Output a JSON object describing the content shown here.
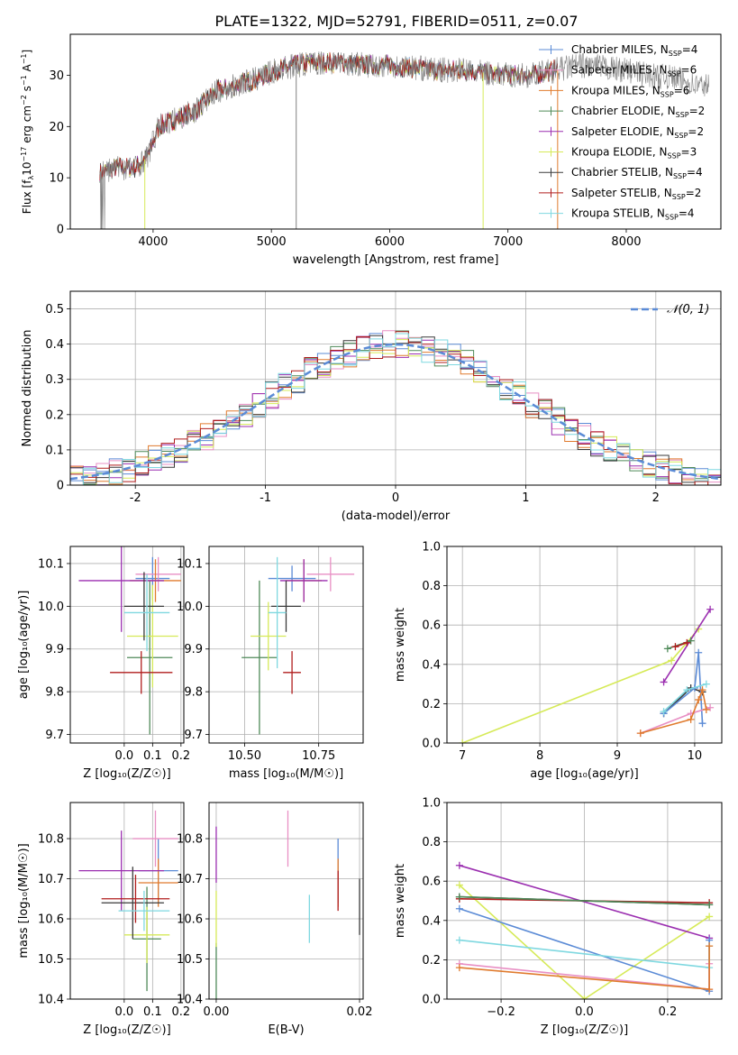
{
  "figure_title": "PLATE=1322, MJD=52791, FIBERID=0511, z=0.07",
  "colors": {
    "chabrier_miles": "#5b8bd6",
    "salpeter_miles": "#e88fc4",
    "kroupa_miles": "#e07b2e",
    "chabrier_elodie": "#4f8a59",
    "salpeter_elodie": "#9b2fb0",
    "kroupa_elodie": "#d6ea58",
    "chabrier_stelib": "#3a3a3a",
    "salpeter_stelib": "#b01d1d",
    "kroupa_stelib": "#7fd8e0",
    "data": "#808080",
    "gaussian": "#5b8bd6"
  },
  "chart_data": [
    {
      "id": "spectrum",
      "type": "line",
      "xlabel": "wavelength [Angstrom, rest frame]",
      "ylabel": "Flux [f_λ10^-17 erg cm^-2 s^-1 A^-1]",
      "xlim": [
        3300,
        8800
      ],
      "ylim": [
        0,
        38
      ],
      "xticks": [
        4000,
        5000,
        6000,
        7000,
        8000
      ],
      "yticks": [
        0,
        10,
        20,
        30
      ],
      "grid": false,
      "legend_position": "top-right",
      "legend": [
        {
          "name": "Chabrier MILES",
          "nssp": "4",
          "color_key": "chabrier_miles"
        },
        {
          "name": "Salpeter MILES",
          "nssp": "6",
          "color_key": "salpeter_miles"
        },
        {
          "name": "Kroupa MILES",
          "nssp": "6",
          "color_key": "kroupa_miles"
        },
        {
          "name": "Chabrier ELODIE",
          "nssp": "2",
          "color_key": "chabrier_elodie"
        },
        {
          "name": "Salpeter ELODIE",
          "nssp": "2",
          "color_key": "salpeter_elodie"
        },
        {
          "name": "Kroupa ELODIE",
          "nssp": "3",
          "color_key": "kroupa_elodie"
        },
        {
          "name": "Chabrier STELIB",
          "nssp": "4",
          "color_key": "chabrier_stelib"
        },
        {
          "name": "Salpeter STELIB",
          "nssp": "2",
          "color_key": "salpeter_stelib"
        },
        {
          "name": "Kroupa STELIB",
          "nssp": "4",
          "color_key": "kroupa_stelib"
        }
      ],
      "continuum": [
        [
          3550,
          11
        ],
        [
          3700,
          12
        ],
        [
          3850,
          12
        ],
        [
          3950,
          14
        ],
        [
          4050,
          20
        ],
        [
          4150,
          21
        ],
        [
          4250,
          22
        ],
        [
          4350,
          23
        ],
        [
          4450,
          25
        ],
        [
          4550,
          27
        ],
        [
          4650,
          27.5
        ],
        [
          4750,
          28.5
        ],
        [
          4850,
          29
        ],
        [
          4950,
          30
        ],
        [
          5050,
          31
        ],
        [
          5200,
          32
        ],
        [
          5400,
          32.5
        ],
        [
          5600,
          32.5
        ],
        [
          5800,
          32
        ],
        [
          6000,
          32
        ],
        [
          6200,
          31.5
        ],
        [
          6400,
          31
        ],
        [
          6600,
          31
        ],
        [
          6800,
          30.5
        ],
        [
          7000,
          30
        ],
        [
          7200,
          30
        ],
        [
          7400,
          31
        ],
        [
          7600,
          32
        ],
        [
          7800,
          31.5
        ],
        [
          8000,
          31
        ],
        [
          8200,
          30
        ],
        [
          8400,
          29.5
        ],
        [
          8600,
          28
        ]
      ]
    },
    {
      "id": "residuals",
      "type": "bar",
      "xlabel": "(data-model)/error",
      "ylabel": "Normed distribution",
      "xlim": [
        -2.5,
        2.5
      ],
      "ylim": [
        0,
        0.55
      ],
      "xticks": [
        -2,
        -1,
        0,
        1,
        2
      ],
      "yticks": [
        0.0,
        0.1,
        0.2,
        0.3,
        0.4,
        0.5
      ],
      "grid": true,
      "legend_position": "top-right",
      "gaussian_label": "𝒩(0, 1)",
      "bin_width": 0.1
    },
    {
      "id": "age_vs_Z",
      "type": "scatter",
      "xlabel": "Z [log₁₀(Z/Z☉)]",
      "ylabel": "age  [log₁₀(age/yr)]",
      "xlim": [
        -0.19,
        0.21
      ],
      "ylim": [
        9.68,
        10.14
      ],
      "xticks": [
        0.0,
        0.1,
        0.2
      ],
      "xticklabels": [
        "0.0",
        "0.1",
        "0.2"
      ],
      "yticks": [
        9.7,
        9.8,
        9.9,
        10.0,
        10.1
      ],
      "yticklabels": [
        "9.7",
        "9.8",
        "9.9",
        "10.0",
        "10.1"
      ],
      "grid": true,
      "points": [
        {
          "c": "chabrier_miles",
          "x": 0.1,
          "xe": 0.06,
          "y": 10.065,
          "ye": 0.05
        },
        {
          "c": "salpeter_miles",
          "x": 0.12,
          "xe": 0.08,
          "y": 10.075,
          "ye": 0.04
        },
        {
          "c": "kroupa_miles",
          "x": 0.11,
          "xe": 0.09,
          "y": 10.06,
          "ye": 0.05
        },
        {
          "c": "chabrier_elodie",
          "x": 0.09,
          "xe": 0.08,
          "y": 9.88,
          "ye": 0.18
        },
        {
          "c": "salpeter_elodie",
          "x": -0.01,
          "xe": 0.15,
          "y": 10.06,
          "ye": 0.12
        },
        {
          "c": "kroupa_elodie",
          "x": 0.1,
          "xe": 0.09,
          "y": 9.93,
          "ye": 0.12
        },
        {
          "c": "chabrier_stelib",
          "x": 0.07,
          "xe": 0.07,
          "y": 10.0,
          "ye": 0.08
        },
        {
          "c": "salpeter_stelib",
          "x": 0.06,
          "xe": 0.11,
          "y": 9.845,
          "ye": 0.05
        },
        {
          "c": "kroupa_stelib",
          "x": 0.08,
          "xe": 0.08,
          "y": 9.985,
          "ye": 0.09
        }
      ]
    },
    {
      "id": "age_vs_mass",
      "type": "scatter",
      "xlabel": "mass [log₁₀(M/M☉)]",
      "ylabel": "",
      "xlim": [
        10.38,
        10.9
      ],
      "ylim": [
        9.68,
        10.14
      ],
      "xticks": [
        10.5,
        10.75
      ],
      "xticklabels": [
        "10.50",
        "10.75"
      ],
      "yticks": [
        9.7,
        9.8,
        9.9,
        10.0,
        10.1
      ],
      "yticklabels": [
        "9.7",
        "9.8",
        "9.9",
        "10.0",
        "10.1"
      ],
      "grid": true,
      "points": [
        {
          "c": "chabrier_miles",
          "x": 10.66,
          "xe": 0.08,
          "y": 10.065,
          "ye": 0.03
        },
        {
          "c": "salpeter_miles",
          "x": 10.79,
          "xe": 0.08,
          "y": 10.075,
          "ye": 0.04
        },
        {
          "c": "kroupa_miles",
          "x": 10.7,
          "xe": 0.06,
          "y": 10.06,
          "ye": 0.05
        },
        {
          "c": "chabrier_elodie",
          "x": 10.55,
          "xe": 0.06,
          "y": 9.88,
          "ye": 0.18
        },
        {
          "c": "salpeter_elodie",
          "x": 10.7,
          "xe": 0.08,
          "y": 10.06,
          "ye": 0.05
        },
        {
          "c": "kroupa_elodie",
          "x": 10.58,
          "xe": 0.06,
          "y": 9.93,
          "ye": 0.08
        },
        {
          "c": "chabrier_stelib",
          "x": 10.64,
          "xe": 0.05,
          "y": 10.0,
          "ye": 0.06
        },
        {
          "c": "salpeter_stelib",
          "x": 10.66,
          "xe": 0.03,
          "y": 9.845,
          "ye": 0.05
        },
        {
          "c": "kroupa_stelib",
          "x": 10.61,
          "xe": 0.03,
          "y": 9.985,
          "ye": 0.13
        }
      ]
    },
    {
      "id": "weight_vs_age",
      "type": "line",
      "xlabel": "age  [log₁₀(age/yr)]",
      "ylabel": "mass weight",
      "xlim": [
        6.8,
        10.35
      ],
      "ylim": [
        0,
        1
      ],
      "xticks": [
        7,
        8,
        9,
        10
      ],
      "xticklabels": [
        "7",
        "8",
        "9",
        "10"
      ],
      "yticks": [
        0,
        0.2,
        0.4,
        0.6,
        0.8,
        1.0
      ],
      "yticklabels": [
        "0.0",
        "0.2",
        "0.4",
        "0.6",
        "0.8",
        "1.0"
      ],
      "grid": true,
      "series": [
        {
          "c": "kroupa_elodie",
          "pts": [
            [
              7.0,
              0.0
            ],
            [
              9.7,
              0.42
            ],
            [
              10.05,
              0.58
            ]
          ]
        },
        {
          "c": "salpeter_elodie",
          "pts": [
            [
              9.6,
              0.31
            ],
            [
              10.2,
              0.68
            ]
          ]
        },
        {
          "c": "chabrier_elodie",
          "pts": [
            [
              9.65,
              0.48
            ],
            [
              9.95,
              0.52
            ]
          ]
        },
        {
          "c": "salpeter_stelib",
          "pts": [
            [
              9.75,
              0.49
            ],
            [
              9.9,
              0.51
            ]
          ]
        },
        {
          "c": "chabrier_stelib",
          "pts": [
            [
              9.6,
              0.15
            ],
            [
              9.95,
              0.28
            ],
            [
              10.1,
              0.26
            ]
          ]
        },
        {
          "c": "chabrier_miles",
          "pts": [
            [
              9.6,
              0.15
            ],
            [
              10.0,
              0.28
            ],
            [
              10.05,
              0.46
            ],
            [
              10.1,
              0.1
            ]
          ]
        },
        {
          "c": "kroupa_stelib",
          "pts": [
            [
              9.6,
              0.16
            ],
            [
              9.9,
              0.27
            ],
            [
              10.15,
              0.3
            ]
          ]
        },
        {
          "c": "salpeter_miles",
          "pts": [
            [
              9.3,
              0.05
            ],
            [
              9.95,
              0.15
            ],
            [
              10.2,
              0.18
            ]
          ]
        },
        {
          "c": "kroupa_miles",
          "pts": [
            [
              9.3,
              0.05
            ],
            [
              9.95,
              0.12
            ],
            [
              10.05,
              0.22
            ],
            [
              10.1,
              0.27
            ],
            [
              10.15,
              0.17
            ]
          ]
        }
      ]
    },
    {
      "id": "mass_vs_Z",
      "type": "scatter",
      "xlabel": "Z [log₁₀(Z/Z☉)]",
      "ylabel": "mass [log₁₀(M/M☉)]",
      "xlim": [
        -0.19,
        0.21
      ],
      "ylim": [
        10.4,
        10.89
      ],
      "xticks": [
        0.0,
        0.1,
        0.2
      ],
      "xticklabels": [
        "0.0",
        "0.1",
        "0.2"
      ],
      "yticks": [
        10.4,
        10.5,
        10.6,
        10.7,
        10.8
      ],
      "yticklabels": [
        "10.4",
        "10.5",
        "10.6",
        "10.7",
        "10.8"
      ],
      "grid": true,
      "points": [
        {
          "c": "chabrier_miles",
          "x": 0.12,
          "xe": 0.07,
          "y": 10.72,
          "ye": 0.08
        },
        {
          "c": "salpeter_miles",
          "x": 0.11,
          "xe": 0.08,
          "y": 10.8,
          "ye": 0.07
        },
        {
          "c": "kroupa_miles",
          "x": 0.12,
          "xe": 0.07,
          "y": 10.69,
          "ye": 0.06
        },
        {
          "c": "chabrier_elodie",
          "x": 0.08,
          "xe": 0.05,
          "y": 10.55,
          "ye": 0.13
        },
        {
          "c": "salpeter_elodie",
          "x": -0.01,
          "xe": 0.15,
          "y": 10.72,
          "ye": 0.1
        },
        {
          "c": "kroupa_elodie",
          "x": 0.08,
          "xe": 0.08,
          "y": 10.56,
          "ye": 0.07
        },
        {
          "c": "chabrier_stelib",
          "x": 0.03,
          "xe": 0.11,
          "y": 10.64,
          "ye": 0.09
        },
        {
          "c": "salpeter_stelib",
          "x": 0.04,
          "xe": 0.12,
          "y": 10.65,
          "ye": 0.06
        },
        {
          "c": "kroupa_stelib",
          "x": 0.07,
          "xe": 0.09,
          "y": 10.62,
          "ye": 0.05
        }
      ]
    },
    {
      "id": "mass_vs_ebv",
      "type": "scatter",
      "xlabel": "E(B-V)",
      "ylabel": "",
      "xlim": [
        -0.001,
        0.0205
      ],
      "ylim": [
        10.4,
        10.89
      ],
      "xticks": [
        0.0,
        0.02
      ],
      "xticklabels": [
        "0.00",
        "0.02"
      ],
      "yticks": [
        10.4,
        10.5,
        10.6,
        10.7,
        10.8
      ],
      "yticklabels": [
        "10.4",
        "10.5",
        "10.6",
        "10.7",
        "10.8"
      ],
      "grid": true,
      "points": [
        {
          "c": "chabrier_miles",
          "x": 0.017,
          "xe": 0,
          "y": 10.72,
          "ye": 0.08
        },
        {
          "c": "salpeter_miles",
          "x": 0.01,
          "xe": 0,
          "y": 10.8,
          "ye": 0.07
        },
        {
          "c": "kroupa_miles",
          "x": 0.017,
          "xe": 0,
          "y": 10.69,
          "ye": 0.06
        },
        {
          "c": "chabrier_elodie",
          "x": 0.0,
          "xe": 0,
          "y": 10.47,
          "ye": 0.07
        },
        {
          "c": "salpeter_elodie",
          "x": 0.0,
          "xe": 0,
          "y": 10.76,
          "ye": 0.07
        },
        {
          "c": "kroupa_elodie",
          "x": 0.0,
          "xe": 0,
          "y": 10.6,
          "ye": 0.07
        },
        {
          "c": "chabrier_stelib",
          "x": 0.02,
          "xe": 0,
          "y": 10.63,
          "ye": 0.07
        },
        {
          "c": "salpeter_stelib",
          "x": 0.017,
          "xe": 0,
          "y": 10.67,
          "ye": 0.05
        },
        {
          "c": "kroupa_stelib",
          "x": 0.013,
          "xe": 0,
          "y": 10.6,
          "ye": 0.06
        }
      ]
    },
    {
      "id": "weight_vs_Z",
      "type": "line",
      "xlabel": "Z [log₁₀(Z/Z☉)]",
      "ylabel": "mass weight",
      "xlim": [
        -0.33,
        0.33
      ],
      "ylim": [
        0,
        1
      ],
      "xticks": [
        -0.2,
        0.0,
        0.2
      ],
      "xticklabels": [
        "−0.2",
        "0.0",
        "0.2"
      ],
      "yticks": [
        0,
        0.2,
        0.4,
        0.6,
        0.8,
        1.0
      ],
      "yticklabels": [
        "0.0",
        "0.2",
        "0.4",
        "0.6",
        "0.8",
        "1.0"
      ],
      "grid": true,
      "series": [
        {
          "c": "kroupa_elodie",
          "pts": [
            [
              -0.3,
              0.58
            ],
            [
              0.0,
              0.0
            ],
            [
              0.3,
              0.42
            ]
          ]
        },
        {
          "c": "salpeter_elodie",
          "pts": [
            [
              -0.3,
              0.68
            ],
            [
              0.3,
              0.31
            ]
          ]
        },
        {
          "c": "salpeter_stelib",
          "pts": [
            [
              -0.3,
              0.51
            ],
            [
              0.3,
              0.49
            ]
          ]
        },
        {
          "c": "chabrier_stelib",
          "pts": [
            [
              -0.3,
              0.52
            ],
            [
              0.3,
              0.48
            ]
          ]
        },
        {
          "c": "chabrier_elodie",
          "pts": [
            [
              -0.3,
              0.52
            ],
            [
              0.3,
              0.48
            ]
          ]
        },
        {
          "c": "chabrier_miles",
          "pts": [
            [
              -0.3,
              0.46
            ],
            [
              0.3,
              0.04
            ],
            [
              0.3,
              0.3
            ]
          ]
        },
        {
          "c": "kroupa_stelib",
          "pts": [
            [
              -0.3,
              0.3
            ],
            [
              0.3,
              0.16
            ],
            [
              0.3,
              0.27
            ]
          ]
        },
        {
          "c": "salpeter_miles",
          "pts": [
            [
              -0.3,
              0.18
            ],
            [
              0.3,
              0.05
            ],
            [
              0.3,
              0.18
            ]
          ]
        },
        {
          "c": "kroupa_miles",
          "pts": [
            [
              -0.3,
              0.16
            ],
            [
              0.3,
              0.05
            ],
            [
              0.3,
              0.27
            ]
          ]
        }
      ]
    }
  ]
}
